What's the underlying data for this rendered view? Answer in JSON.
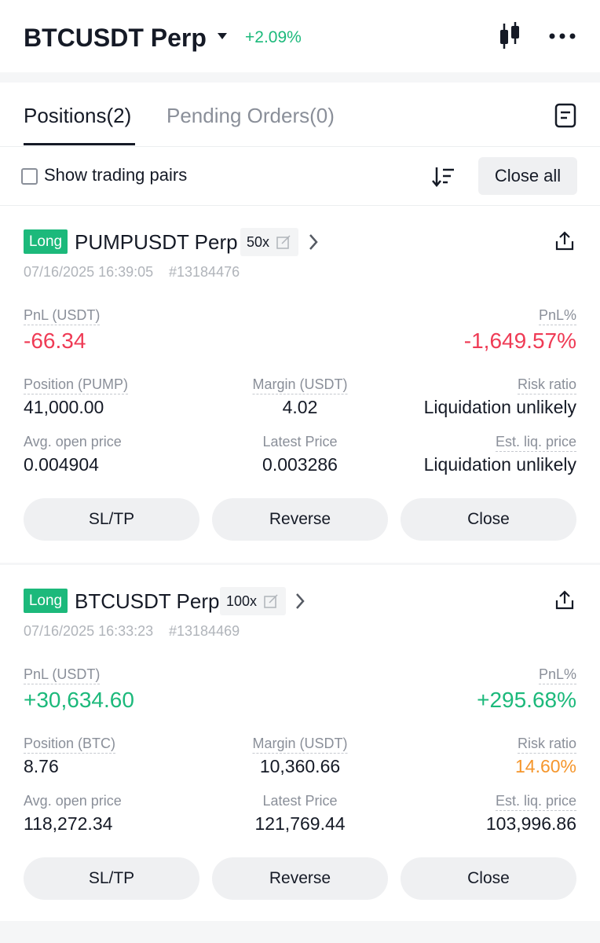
{
  "header": {
    "symbol": "BTCUSDT Perp",
    "change": "+2.09%"
  },
  "tabs": [
    "Positions(2)",
    "Pending Orders(0)"
  ],
  "toolbar": {
    "checkbox_label": "Show trading pairs",
    "close_all": "Close all"
  },
  "positions": [
    {
      "side": "Long",
      "symbol": "PUMPUSDT Perp",
      "leverage": "50x",
      "time": "07/16/2025 16:39:05",
      "id": "#13184476",
      "pnl_label": "PnL (USDT)",
      "pnl": "-66.34",
      "pnl_pct_label": "PnL%",
      "pnl_pct": "-1,649.57%",
      "position_label": "Position (PUMP)",
      "position": "41,000.00",
      "margin_label": "Margin (USDT)",
      "margin": "4.02",
      "risk_label": "Risk ratio",
      "risk": "Liquidation unlikely",
      "avg_label": "Avg. open price",
      "avg": "0.004904",
      "latest_label": "Latest Price",
      "latest": "0.003286",
      "liq_label": "Est. liq. price",
      "liq": "Liquidation unlikely",
      "buttons": [
        "SL/TP",
        "Reverse",
        "Close"
      ]
    },
    {
      "side": "Long",
      "symbol": "BTCUSDT Perp",
      "leverage": "100x",
      "time": "07/16/2025 16:33:23",
      "id": "#13184469",
      "pnl_label": "PnL (USDT)",
      "pnl": "+30,634.60",
      "pnl_pct_label": "PnL%",
      "pnl_pct": "+295.68%",
      "position_label": "Position (BTC)",
      "position": "8.76",
      "margin_label": "Margin (USDT)",
      "margin": "10,360.66",
      "risk_label": "Risk ratio",
      "risk": "14.60%",
      "avg_label": "Avg. open price",
      "avg": "118,272.34",
      "latest_label": "Latest Price",
      "latest": "121,769.44",
      "liq_label": "Est. liq. price",
      "liq": "103,996.86",
      "buttons": [
        "SL/TP",
        "Reverse",
        "Close"
      ]
    }
  ]
}
